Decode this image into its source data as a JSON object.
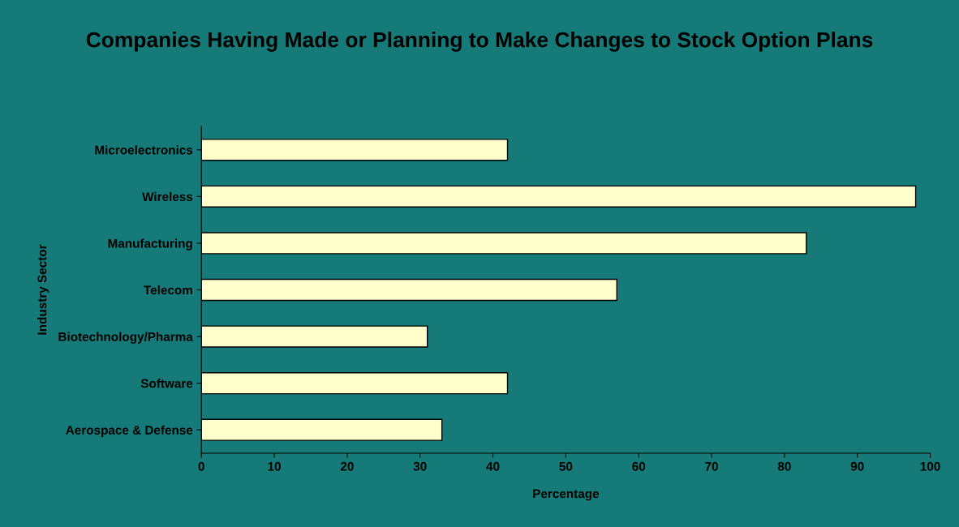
{
  "chart_data": {
    "type": "bar",
    "orientation": "horizontal",
    "title": "Companies Having Made or Planning to Make Changes to Stock Option Plans",
    "xlabel": "Percentage",
    "ylabel": "Industry Sector",
    "categories": [
      "Microelectronics",
      "Wireless",
      "Manufacturing",
      "Telecom",
      "Biotechnology/Pharma",
      "Software",
      "Aerospace & Defense"
    ],
    "values": [
      42,
      98,
      83,
      57,
      31,
      42,
      33
    ],
    "color": "#ffffcc",
    "xlim": [
      0,
      100
    ],
    "xticks": [
      0,
      10,
      20,
      30,
      40,
      50,
      60,
      70,
      80,
      90,
      100
    ],
    "grid": false
  }
}
